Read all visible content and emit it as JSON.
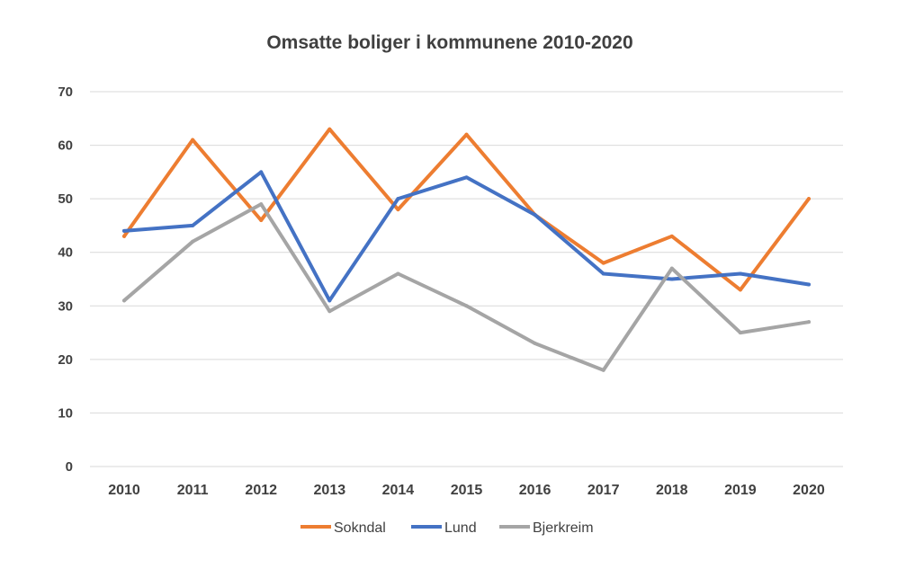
{
  "chart_data": {
    "type": "line",
    "title": "Omsatte boliger i kommunene 2010-2020",
    "xlabel": "",
    "ylabel": "",
    "categories": [
      "2010",
      "2011",
      "2012",
      "2013",
      "2014",
      "2015",
      "2016",
      "2017",
      "2018",
      "2019",
      "2020"
    ],
    "ylim": [
      0,
      70
    ],
    "yticks": [
      "0",
      "10",
      "20",
      "30",
      "40",
      "50",
      "60",
      "70"
    ],
    "grid": true,
    "legend_position": "bottom",
    "series": [
      {
        "name": "Sokndal",
        "color": "#ed7d31",
        "values": [
          43,
          61,
          46,
          63,
          48,
          62,
          47,
          38,
          43,
          33,
          50
        ]
      },
      {
        "name": "Lund",
        "color": "#4472c4",
        "values": [
          44,
          45,
          55,
          31,
          50,
          54,
          47,
          36,
          35,
          36,
          34
        ]
      },
      {
        "name": "Bjerkreim",
        "color": "#a5a5a5",
        "values": [
          31,
          42,
          49,
          29,
          36,
          30,
          23,
          18,
          37,
          25,
          27
        ]
      }
    ]
  }
}
